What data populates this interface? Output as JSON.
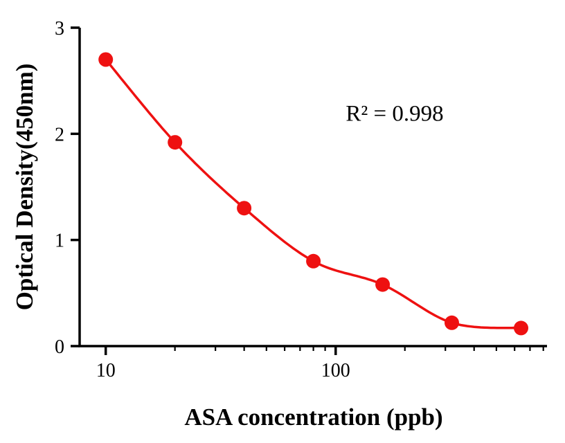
{
  "chart_data": {
    "type": "scatter",
    "title": "",
    "xlabel": "ASA concentration (ppb)",
    "ylabel": "Optical Density(450nm)",
    "annotation": "R² = 0.998",
    "x_scale": "log10",
    "x": [
      10,
      20,
      40,
      80,
      160,
      320,
      640
    ],
    "y": [
      2.7,
      1.92,
      1.3,
      0.8,
      0.58,
      0.22,
      0.17
    ],
    "fit_curve": true,
    "xlim": [
      7.7,
      830
    ],
    "ylim": [
      0,
      3
    ],
    "x_major_ticks": [
      10,
      100
    ],
    "x_major_tick_labels": [
      "10",
      "100"
    ],
    "x_minor_ticks": [
      20,
      30,
      40,
      50,
      60,
      70,
      80,
      90,
      200,
      300,
      400,
      500,
      600,
      700,
      800
    ],
    "y_ticks": [
      0,
      1,
      2,
      3
    ],
    "y_tick_labels": [
      "0",
      "1",
      "2",
      "3"
    ],
    "grid": false,
    "legend": false,
    "colors": {
      "marker": "#ee1111",
      "curve": "#ee1111",
      "axis": "#000000",
      "text": "#000000",
      "background": "#ffffff"
    }
  }
}
